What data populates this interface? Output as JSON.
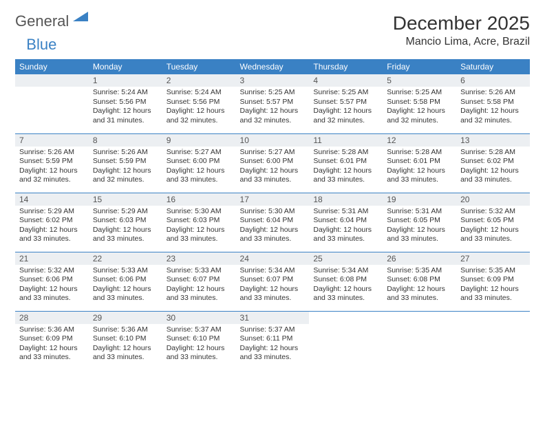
{
  "logo": {
    "part1": "General",
    "part2": "Blue"
  },
  "title": "December 2025",
  "location": "Mancio Lima, Acre, Brazil",
  "colors": {
    "brand": "#3a81c4",
    "headerBg": "#eceff2",
    "text": "#333333"
  },
  "weekdays": [
    "Sunday",
    "Monday",
    "Tuesday",
    "Wednesday",
    "Thursday",
    "Friday",
    "Saturday"
  ],
  "firstDayIndex": 1,
  "daysInMonth": 31,
  "days": {
    "1": {
      "sr": "5:24 AM",
      "ss": "5:56 PM",
      "dl": "12 hours and 31 minutes."
    },
    "2": {
      "sr": "5:24 AM",
      "ss": "5:56 PM",
      "dl": "12 hours and 32 minutes."
    },
    "3": {
      "sr": "5:25 AM",
      "ss": "5:57 PM",
      "dl": "12 hours and 32 minutes."
    },
    "4": {
      "sr": "5:25 AM",
      "ss": "5:57 PM",
      "dl": "12 hours and 32 minutes."
    },
    "5": {
      "sr": "5:25 AM",
      "ss": "5:58 PM",
      "dl": "12 hours and 32 minutes."
    },
    "6": {
      "sr": "5:26 AM",
      "ss": "5:58 PM",
      "dl": "12 hours and 32 minutes."
    },
    "7": {
      "sr": "5:26 AM",
      "ss": "5:59 PM",
      "dl": "12 hours and 32 minutes."
    },
    "8": {
      "sr": "5:26 AM",
      "ss": "5:59 PM",
      "dl": "12 hours and 32 minutes."
    },
    "9": {
      "sr": "5:27 AM",
      "ss": "6:00 PM",
      "dl": "12 hours and 33 minutes."
    },
    "10": {
      "sr": "5:27 AM",
      "ss": "6:00 PM",
      "dl": "12 hours and 33 minutes."
    },
    "11": {
      "sr": "5:28 AM",
      "ss": "6:01 PM",
      "dl": "12 hours and 33 minutes."
    },
    "12": {
      "sr": "5:28 AM",
      "ss": "6:01 PM",
      "dl": "12 hours and 33 minutes."
    },
    "13": {
      "sr": "5:28 AM",
      "ss": "6:02 PM",
      "dl": "12 hours and 33 minutes."
    },
    "14": {
      "sr": "5:29 AM",
      "ss": "6:02 PM",
      "dl": "12 hours and 33 minutes."
    },
    "15": {
      "sr": "5:29 AM",
      "ss": "6:03 PM",
      "dl": "12 hours and 33 minutes."
    },
    "16": {
      "sr": "5:30 AM",
      "ss": "6:03 PM",
      "dl": "12 hours and 33 minutes."
    },
    "17": {
      "sr": "5:30 AM",
      "ss": "6:04 PM",
      "dl": "12 hours and 33 minutes."
    },
    "18": {
      "sr": "5:31 AM",
      "ss": "6:04 PM",
      "dl": "12 hours and 33 minutes."
    },
    "19": {
      "sr": "5:31 AM",
      "ss": "6:05 PM",
      "dl": "12 hours and 33 minutes."
    },
    "20": {
      "sr": "5:32 AM",
      "ss": "6:05 PM",
      "dl": "12 hours and 33 minutes."
    },
    "21": {
      "sr": "5:32 AM",
      "ss": "6:06 PM",
      "dl": "12 hours and 33 minutes."
    },
    "22": {
      "sr": "5:33 AM",
      "ss": "6:06 PM",
      "dl": "12 hours and 33 minutes."
    },
    "23": {
      "sr": "5:33 AM",
      "ss": "6:07 PM",
      "dl": "12 hours and 33 minutes."
    },
    "24": {
      "sr": "5:34 AM",
      "ss": "6:07 PM",
      "dl": "12 hours and 33 minutes."
    },
    "25": {
      "sr": "5:34 AM",
      "ss": "6:08 PM",
      "dl": "12 hours and 33 minutes."
    },
    "26": {
      "sr": "5:35 AM",
      "ss": "6:08 PM",
      "dl": "12 hours and 33 minutes."
    },
    "27": {
      "sr": "5:35 AM",
      "ss": "6:09 PM",
      "dl": "12 hours and 33 minutes."
    },
    "28": {
      "sr": "5:36 AM",
      "ss": "6:09 PM",
      "dl": "12 hours and 33 minutes."
    },
    "29": {
      "sr": "5:36 AM",
      "ss": "6:10 PM",
      "dl": "12 hours and 33 minutes."
    },
    "30": {
      "sr": "5:37 AM",
      "ss": "6:10 PM",
      "dl": "12 hours and 33 minutes."
    },
    "31": {
      "sr": "5:37 AM",
      "ss": "6:11 PM",
      "dl": "12 hours and 33 minutes."
    }
  },
  "labels": {
    "sunrise": "Sunrise:",
    "sunset": "Sunset:",
    "daylight": "Daylight:"
  }
}
